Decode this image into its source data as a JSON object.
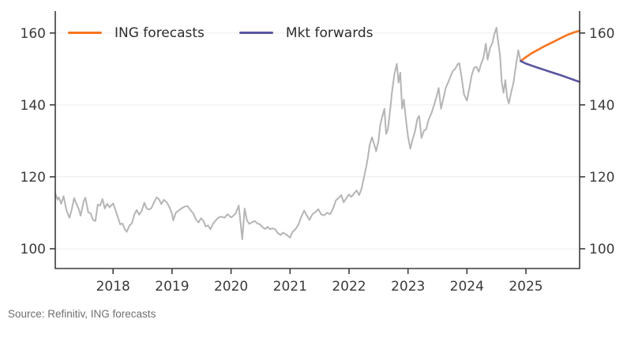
{
  "chart_data": {
    "type": "line",
    "title": "",
    "xlabel": "",
    "ylabel": "",
    "x_ticks": [
      2018,
      2019,
      2020,
      2021,
      2022,
      2023,
      2024,
      2025
    ],
    "y_ticks": [
      100,
      120,
      140,
      160
    ],
    "xlim": [
      2017.02,
      2025.91
    ],
    "ylim": [
      94.5,
      166.1
    ],
    "y_axis_both_sides": true,
    "top_spine": false,
    "grid": "horizontal-light",
    "colors": {
      "history_line": "#b5b5b5",
      "ing_forecast_line": "#f8741f",
      "mkt_forwards_line": "#5a55a0",
      "axis": "#3c3c3c",
      "grid": "#efefef",
      "tick_label": "#3a3a3a",
      "legend_text": "#2d2d2d",
      "source_text": "#6f6f6f"
    },
    "legend": {
      "position": "top-left-inside",
      "entries": [
        "ING forecasts",
        "Mkt forwards"
      ]
    },
    "series": [
      {
        "name": "history",
        "in_legend": false,
        "color": "#b5b5b5",
        "width": 2.0,
        "points": [
          [
            2017.02,
            115.4
          ],
          [
            2017.06,
            113.6
          ],
          [
            2017.08,
            114.3
          ],
          [
            2017.12,
            112.5
          ],
          [
            2017.16,
            114.6
          ],
          [
            2017.21,
            110.7
          ],
          [
            2017.26,
            108.6
          ],
          [
            2017.3,
            111.0
          ],
          [
            2017.34,
            114.1
          ],
          [
            2017.38,
            112.4
          ],
          [
            2017.42,
            110.9
          ],
          [
            2017.45,
            109.2
          ],
          [
            2017.5,
            113.2
          ],
          [
            2017.53,
            114.2
          ],
          [
            2017.58,
            110.1
          ],
          [
            2017.62,
            109.8
          ],
          [
            2017.66,
            108.0
          ],
          [
            2017.7,
            107.7
          ],
          [
            2017.74,
            112.3
          ],
          [
            2017.78,
            112.0
          ],
          [
            2017.82,
            113.8
          ],
          [
            2017.86,
            111.2
          ],
          [
            2017.9,
            112.5
          ],
          [
            2017.94,
            111.5
          ],
          [
            2018.0,
            112.6
          ],
          [
            2018.04,
            110.8
          ],
          [
            2018.08,
            108.8
          ],
          [
            2018.12,
            106.8
          ],
          [
            2018.16,
            107.0
          ],
          [
            2018.2,
            105.4
          ],
          [
            2018.23,
            104.7
          ],
          [
            2018.28,
            106.5
          ],
          [
            2018.32,
            107.1
          ],
          [
            2018.36,
            109.5
          ],
          [
            2018.4,
            110.8
          ],
          [
            2018.44,
            109.5
          ],
          [
            2018.48,
            110.3
          ],
          [
            2018.53,
            112.8
          ],
          [
            2018.57,
            111.2
          ],
          [
            2018.61,
            110.9
          ],
          [
            2018.65,
            111.3
          ],
          [
            2018.7,
            113.1
          ],
          [
            2018.74,
            114.3
          ],
          [
            2018.78,
            113.7
          ],
          [
            2018.82,
            112.4
          ],
          [
            2018.86,
            113.6
          ],
          [
            2018.91,
            112.9
          ],
          [
            2018.96,
            111.4
          ],
          [
            2019.0,
            109.6
          ],
          [
            2019.02,
            107.9
          ],
          [
            2019.06,
            109.9
          ],
          [
            2019.1,
            110.5
          ],
          [
            2019.15,
            111.1
          ],
          [
            2019.2,
            111.6
          ],
          [
            2019.26,
            111.9
          ],
          [
            2019.31,
            110.8
          ],
          [
            2019.36,
            109.8
          ],
          [
            2019.41,
            108.0
          ],
          [
            2019.45,
            107.3
          ],
          [
            2019.49,
            108.5
          ],
          [
            2019.53,
            107.8
          ],
          [
            2019.57,
            106.2
          ],
          [
            2019.61,
            106.5
          ],
          [
            2019.65,
            105.4
          ],
          [
            2019.7,
            107.1
          ],
          [
            2019.74,
            107.9
          ],
          [
            2019.79,
            108.7
          ],
          [
            2019.84,
            108.9
          ],
          [
            2019.89,
            108.6
          ],
          [
            2019.94,
            109.6
          ],
          [
            2020.0,
            108.7
          ],
          [
            2020.04,
            109.2
          ],
          [
            2020.08,
            109.9
          ],
          [
            2020.13,
            112.0
          ],
          [
            2020.16,
            107.5
          ],
          [
            2020.19,
            102.6
          ],
          [
            2020.23,
            111.2
          ],
          [
            2020.27,
            107.9
          ],
          [
            2020.31,
            106.9
          ],
          [
            2020.36,
            107.4
          ],
          [
            2020.4,
            107.7
          ],
          [
            2020.45,
            107.0
          ],
          [
            2020.49,
            106.8
          ],
          [
            2020.53,
            106.0
          ],
          [
            2020.58,
            105.5
          ],
          [
            2020.62,
            106.1
          ],
          [
            2020.66,
            105.4
          ],
          [
            2020.7,
            105.7
          ],
          [
            2020.75,
            105.4
          ],
          [
            2020.79,
            104.4
          ],
          [
            2020.84,
            103.8
          ],
          [
            2020.88,
            104.5
          ],
          [
            2020.92,
            104.1
          ],
          [
            2020.96,
            103.6
          ],
          [
            2021.0,
            103.1
          ],
          [
            2021.04,
            104.6
          ],
          [
            2021.09,
            105.4
          ],
          [
            2021.14,
            106.6
          ],
          [
            2021.19,
            108.9
          ],
          [
            2021.24,
            110.6
          ],
          [
            2021.29,
            109.1
          ],
          [
            2021.33,
            108.0
          ],
          [
            2021.38,
            109.6
          ],
          [
            2021.43,
            110.2
          ],
          [
            2021.48,
            111.0
          ],
          [
            2021.53,
            109.5
          ],
          [
            2021.58,
            109.3
          ],
          [
            2021.63,
            110.0
          ],
          [
            2021.68,
            109.6
          ],
          [
            2021.73,
            111.2
          ],
          [
            2021.78,
            113.5
          ],
          [
            2021.83,
            114.2
          ],
          [
            2021.87,
            114.9
          ],
          [
            2021.91,
            112.9
          ],
          [
            2021.96,
            114.2
          ],
          [
            2022.0,
            115.1
          ],
          [
            2022.04,
            114.4
          ],
          [
            2022.09,
            115.5
          ],
          [
            2022.13,
            116.2
          ],
          [
            2022.17,
            114.9
          ],
          [
            2022.21,
            116.5
          ],
          [
            2022.25,
            119.5
          ],
          [
            2022.29,
            122.6
          ],
          [
            2022.32,
            125.4
          ],
          [
            2022.35,
            128.8
          ],
          [
            2022.39,
            131.0
          ],
          [
            2022.43,
            128.9
          ],
          [
            2022.46,
            127.1
          ],
          [
            2022.5,
            130.0
          ],
          [
            2022.53,
            134.4
          ],
          [
            2022.56,
            136.5
          ],
          [
            2022.6,
            138.9
          ],
          [
            2022.63,
            131.9
          ],
          [
            2022.66,
            133.3
          ],
          [
            2022.7,
            138.8
          ],
          [
            2022.73,
            143.8
          ],
          [
            2022.77,
            148.6
          ],
          [
            2022.81,
            151.4
          ],
          [
            2022.84,
            146.2
          ],
          [
            2022.87,
            149.0
          ],
          [
            2022.9,
            139.0
          ],
          [
            2022.93,
            141.5
          ],
          [
            2022.96,
            136.6
          ],
          [
            2023.0,
            131.2
          ],
          [
            2023.04,
            127.8
          ],
          [
            2023.08,
            130.5
          ],
          [
            2023.12,
            132.7
          ],
          [
            2023.16,
            136.2
          ],
          [
            2023.19,
            136.9
          ],
          [
            2023.23,
            130.8
          ],
          [
            2023.27,
            132.8
          ],
          [
            2023.31,
            133.3
          ],
          [
            2023.35,
            135.9
          ],
          [
            2023.4,
            137.8
          ],
          [
            2023.44,
            139.8
          ],
          [
            2023.48,
            142.0
          ],
          [
            2023.52,
            144.7
          ],
          [
            2023.56,
            138.9
          ],
          [
            2023.6,
            141.8
          ],
          [
            2023.64,
            144.8
          ],
          [
            2023.68,
            146.2
          ],
          [
            2023.72,
            147.8
          ],
          [
            2023.76,
            149.4
          ],
          [
            2023.8,
            150.0
          ],
          [
            2023.84,
            151.3
          ],
          [
            2023.87,
            151.6
          ],
          [
            2023.91,
            147.6
          ],
          [
            2023.95,
            142.9
          ],
          [
            2024.0,
            141.2
          ],
          [
            2024.04,
            144.6
          ],
          [
            2024.08,
            148.2
          ],
          [
            2024.12,
            150.3
          ],
          [
            2024.16,
            150.6
          ],
          [
            2024.2,
            149.2
          ],
          [
            2024.24,
            151.4
          ],
          [
            2024.28,
            153.2
          ],
          [
            2024.32,
            157.0
          ],
          [
            2024.35,
            152.6
          ],
          [
            2024.39,
            155.8
          ],
          [
            2024.43,
            157.2
          ],
          [
            2024.46,
            159.4
          ],
          [
            2024.5,
            161.5
          ],
          [
            2024.53,
            157.4
          ],
          [
            2024.56,
            153.7
          ],
          [
            2024.59,
            146.3
          ],
          [
            2024.62,
            143.4
          ],
          [
            2024.65,
            146.9
          ],
          [
            2024.68,
            142.2
          ],
          [
            2024.71,
            140.4
          ],
          [
            2024.75,
            143.6
          ],
          [
            2024.79,
            146.2
          ],
          [
            2024.82,
            149.8
          ],
          [
            2024.85,
            153.0
          ],
          [
            2024.87,
            155.2
          ],
          [
            2024.91,
            152.2
          ]
        ]
      },
      {
        "name": "ING forecasts",
        "in_legend": true,
        "color": "#f8741f",
        "width": 2.6,
        "points": [
          [
            2024.91,
            152.2
          ],
          [
            2025.0,
            153.3
          ],
          [
            2025.1,
            154.4
          ],
          [
            2025.19,
            155.2
          ],
          [
            2025.3,
            156.2
          ],
          [
            2025.45,
            157.4
          ],
          [
            2025.58,
            158.5
          ],
          [
            2025.72,
            159.6
          ],
          [
            2025.82,
            160.2
          ],
          [
            2025.91,
            160.6
          ]
        ]
      },
      {
        "name": "Mkt forwards",
        "in_legend": true,
        "color": "#5a55a0",
        "width": 2.6,
        "points": [
          [
            2024.91,
            152.2
          ],
          [
            2025.0,
            151.5
          ],
          [
            2025.1,
            150.9
          ],
          [
            2025.19,
            150.4
          ],
          [
            2025.3,
            149.8
          ],
          [
            2025.45,
            149.0
          ],
          [
            2025.58,
            148.3
          ],
          [
            2025.72,
            147.5
          ],
          [
            2025.82,
            146.9
          ],
          [
            2025.91,
            146.4
          ]
        ]
      }
    ]
  },
  "footer": {
    "source": "Source: Refinitiv, ING forecasts"
  }
}
